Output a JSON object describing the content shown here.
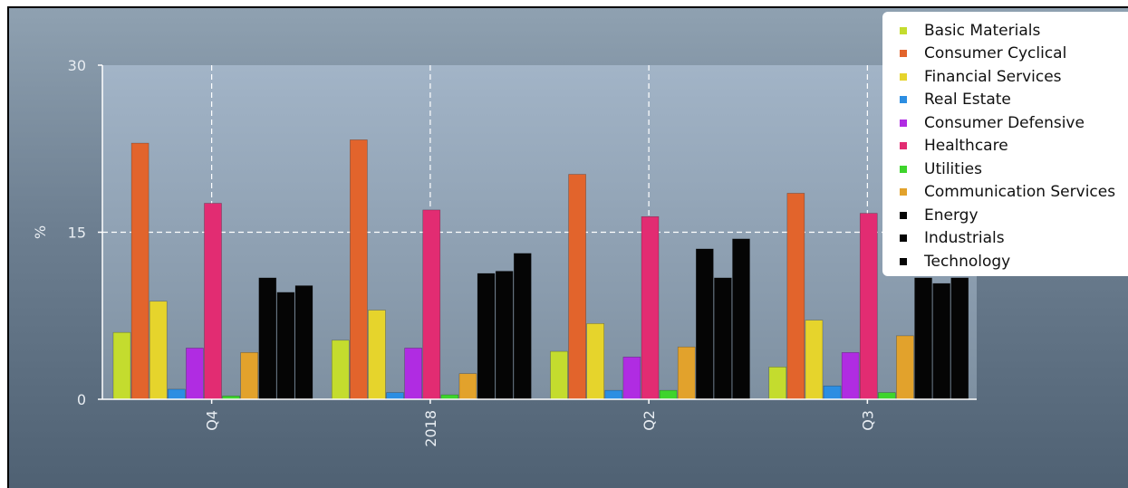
{
  "chart_data": {
    "type": "bar",
    "title": "",
    "xlabel": "",
    "ylabel": "%",
    "ylim": [
      0,
      30
    ],
    "yticks": [
      "0",
      "15",
      "30"
    ],
    "categories": [
      "Q4",
      "2018",
      "Q2",
      "Q3"
    ],
    "grid": true,
    "legend_position": "top-right",
    "series": [
      {
        "name": "Basic Materials",
        "color": "#c4dc2e",
        "values": [
          6.0,
          5.3,
          4.3,
          2.9
        ]
      },
      {
        "name": "Consumer Cyclical",
        "color": "#e2642c",
        "values": [
          23.0,
          23.3,
          20.2,
          18.5
        ]
      },
      {
        "name": "Financial Services",
        "color": "#e6d42c",
        "values": [
          8.8,
          8.0,
          6.8,
          7.1
        ]
      },
      {
        "name": "Real Estate",
        "color": "#2c8ee2",
        "values": [
          0.9,
          0.6,
          0.8,
          1.2
        ]
      },
      {
        "name": "Consumer Defensive",
        "color": "#b02ce2",
        "values": [
          4.6,
          4.6,
          3.8,
          4.2
        ]
      },
      {
        "name": "Healthcare",
        "color": "#e22c72",
        "values": [
          17.6,
          17.0,
          16.4,
          16.7
        ]
      },
      {
        "name": "Utilities",
        "color": "#3ed42c",
        "values": [
          0.3,
          0.4,
          0.8,
          0.6
        ]
      },
      {
        "name": "Communication Services",
        "color": "#e2a22c",
        "values": [
          4.2,
          2.3,
          4.7,
          5.7
        ]
      },
      {
        "name": "Energy",
        "color": "#050505",
        "values": [
          10.9,
          11.3,
          13.5,
          10.9
        ]
      },
      {
        "name": "Industrials",
        "color": "#050505",
        "values": [
          9.6,
          11.5,
          10.9,
          10.4
        ]
      },
      {
        "name": "Technology",
        "color": "#050505",
        "values": [
          10.2,
          13.1,
          14.4,
          10.9
        ]
      }
    ]
  }
}
